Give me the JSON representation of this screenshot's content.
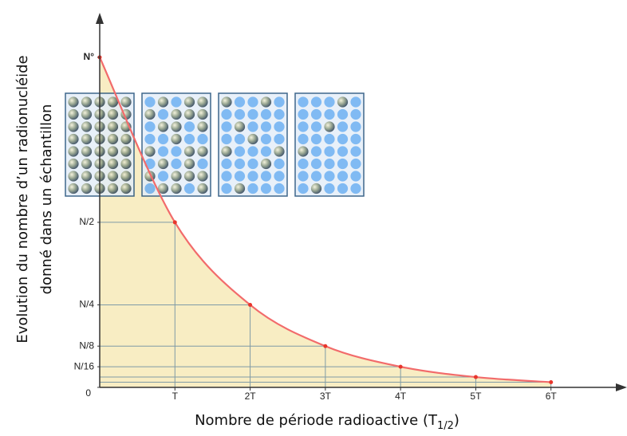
{
  "chart_data": {
    "type": "line",
    "ylabel": [
      "Evolution du nombre d’un radionucléide",
      "donné dans un échantillon"
    ],
    "xlabel": {
      "text": "Nombre de période radioactive (T",
      "subscript": "1/2",
      "suffix": ")"
    },
    "x": [
      0,
      1,
      2,
      3,
      4,
      5,
      6
    ],
    "series": [
      {
        "color": "#f26b6b",
        "values": [
          1,
          0.5,
          0.25,
          0.125,
          0.0625,
          0.03125,
          0.015625
        ]
      }
    ],
    "fill_color": "#f8edc3",
    "xlim": [
      0,
      7
    ],
    "ylim": [
      0,
      1.13
    ],
    "xticks": [
      {
        "value": 1,
        "label": "T"
      },
      {
        "value": 2,
        "label": "2T"
      },
      {
        "value": 3,
        "label": "3T"
      },
      {
        "value": 4,
        "label": "4T"
      },
      {
        "value": 5,
        "label": "5T"
      },
      {
        "value": 6,
        "label": "6T"
      }
    ],
    "yticks": [
      0,
      {
        "value": 0.0625,
        "label": "N/16"
      },
      {
        "value": 0.125,
        "label": "N/8"
      },
      {
        "value": 0.25,
        "label": "N/4"
      },
      {
        "value": 0.5,
        "label": "N/2"
      },
      {
        "value": 1,
        "label": "N°"
      }
    ],
    "guide_lines": true
  }
}
